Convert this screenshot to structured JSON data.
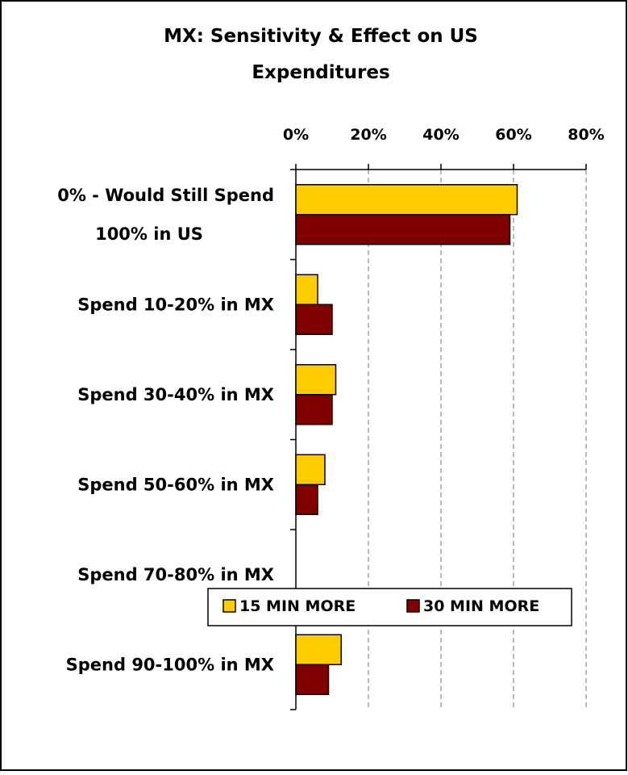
{
  "chart_data": {
    "type": "bar",
    "orientation": "horizontal",
    "title": "MX: Sensitivity & Effect on US Expenditures",
    "title_lines": [
      "MX: Sensitivity & Effect on US",
      "Expenditures"
    ],
    "categories": [
      "0% - Would Still Spend 100% in US",
      "Spend 10-20% in MX",
      "Spend 30-40% in MX",
      "Spend 50-60% in MX",
      "Spend 70-80% in MX",
      "Spend 90-100% in MX"
    ],
    "category_lines": [
      [
        "0% - Would Still Spend",
        "100% in US"
      ],
      [
        "Spend 10-20% in MX"
      ],
      [
        "Spend 30-40% in MX"
      ],
      [
        "Spend 50-60% in MX"
      ],
      [
        "Spend 70-80% in MX"
      ],
      [
        "Spend 90-100% in MX"
      ]
    ],
    "series": [
      {
        "name": "15 MIN MORE",
        "color": "#FFCC00",
        "values": [
          61,
          6,
          11,
          8,
          0,
          12.5
        ]
      },
      {
        "name": "30 MIN MORE",
        "color": "#800000",
        "values": [
          59,
          10,
          10,
          6,
          0,
          9
        ]
      }
    ],
    "xlim": [
      0,
      80
    ],
    "x_ticks": [
      0,
      20,
      40,
      60,
      80
    ],
    "x_tick_labels": [
      "0%",
      "20%",
      "40%",
      "60%",
      "80%"
    ],
    "x_axis_position": "top",
    "grid": "vertical dashed",
    "legend_position": "bottom"
  }
}
